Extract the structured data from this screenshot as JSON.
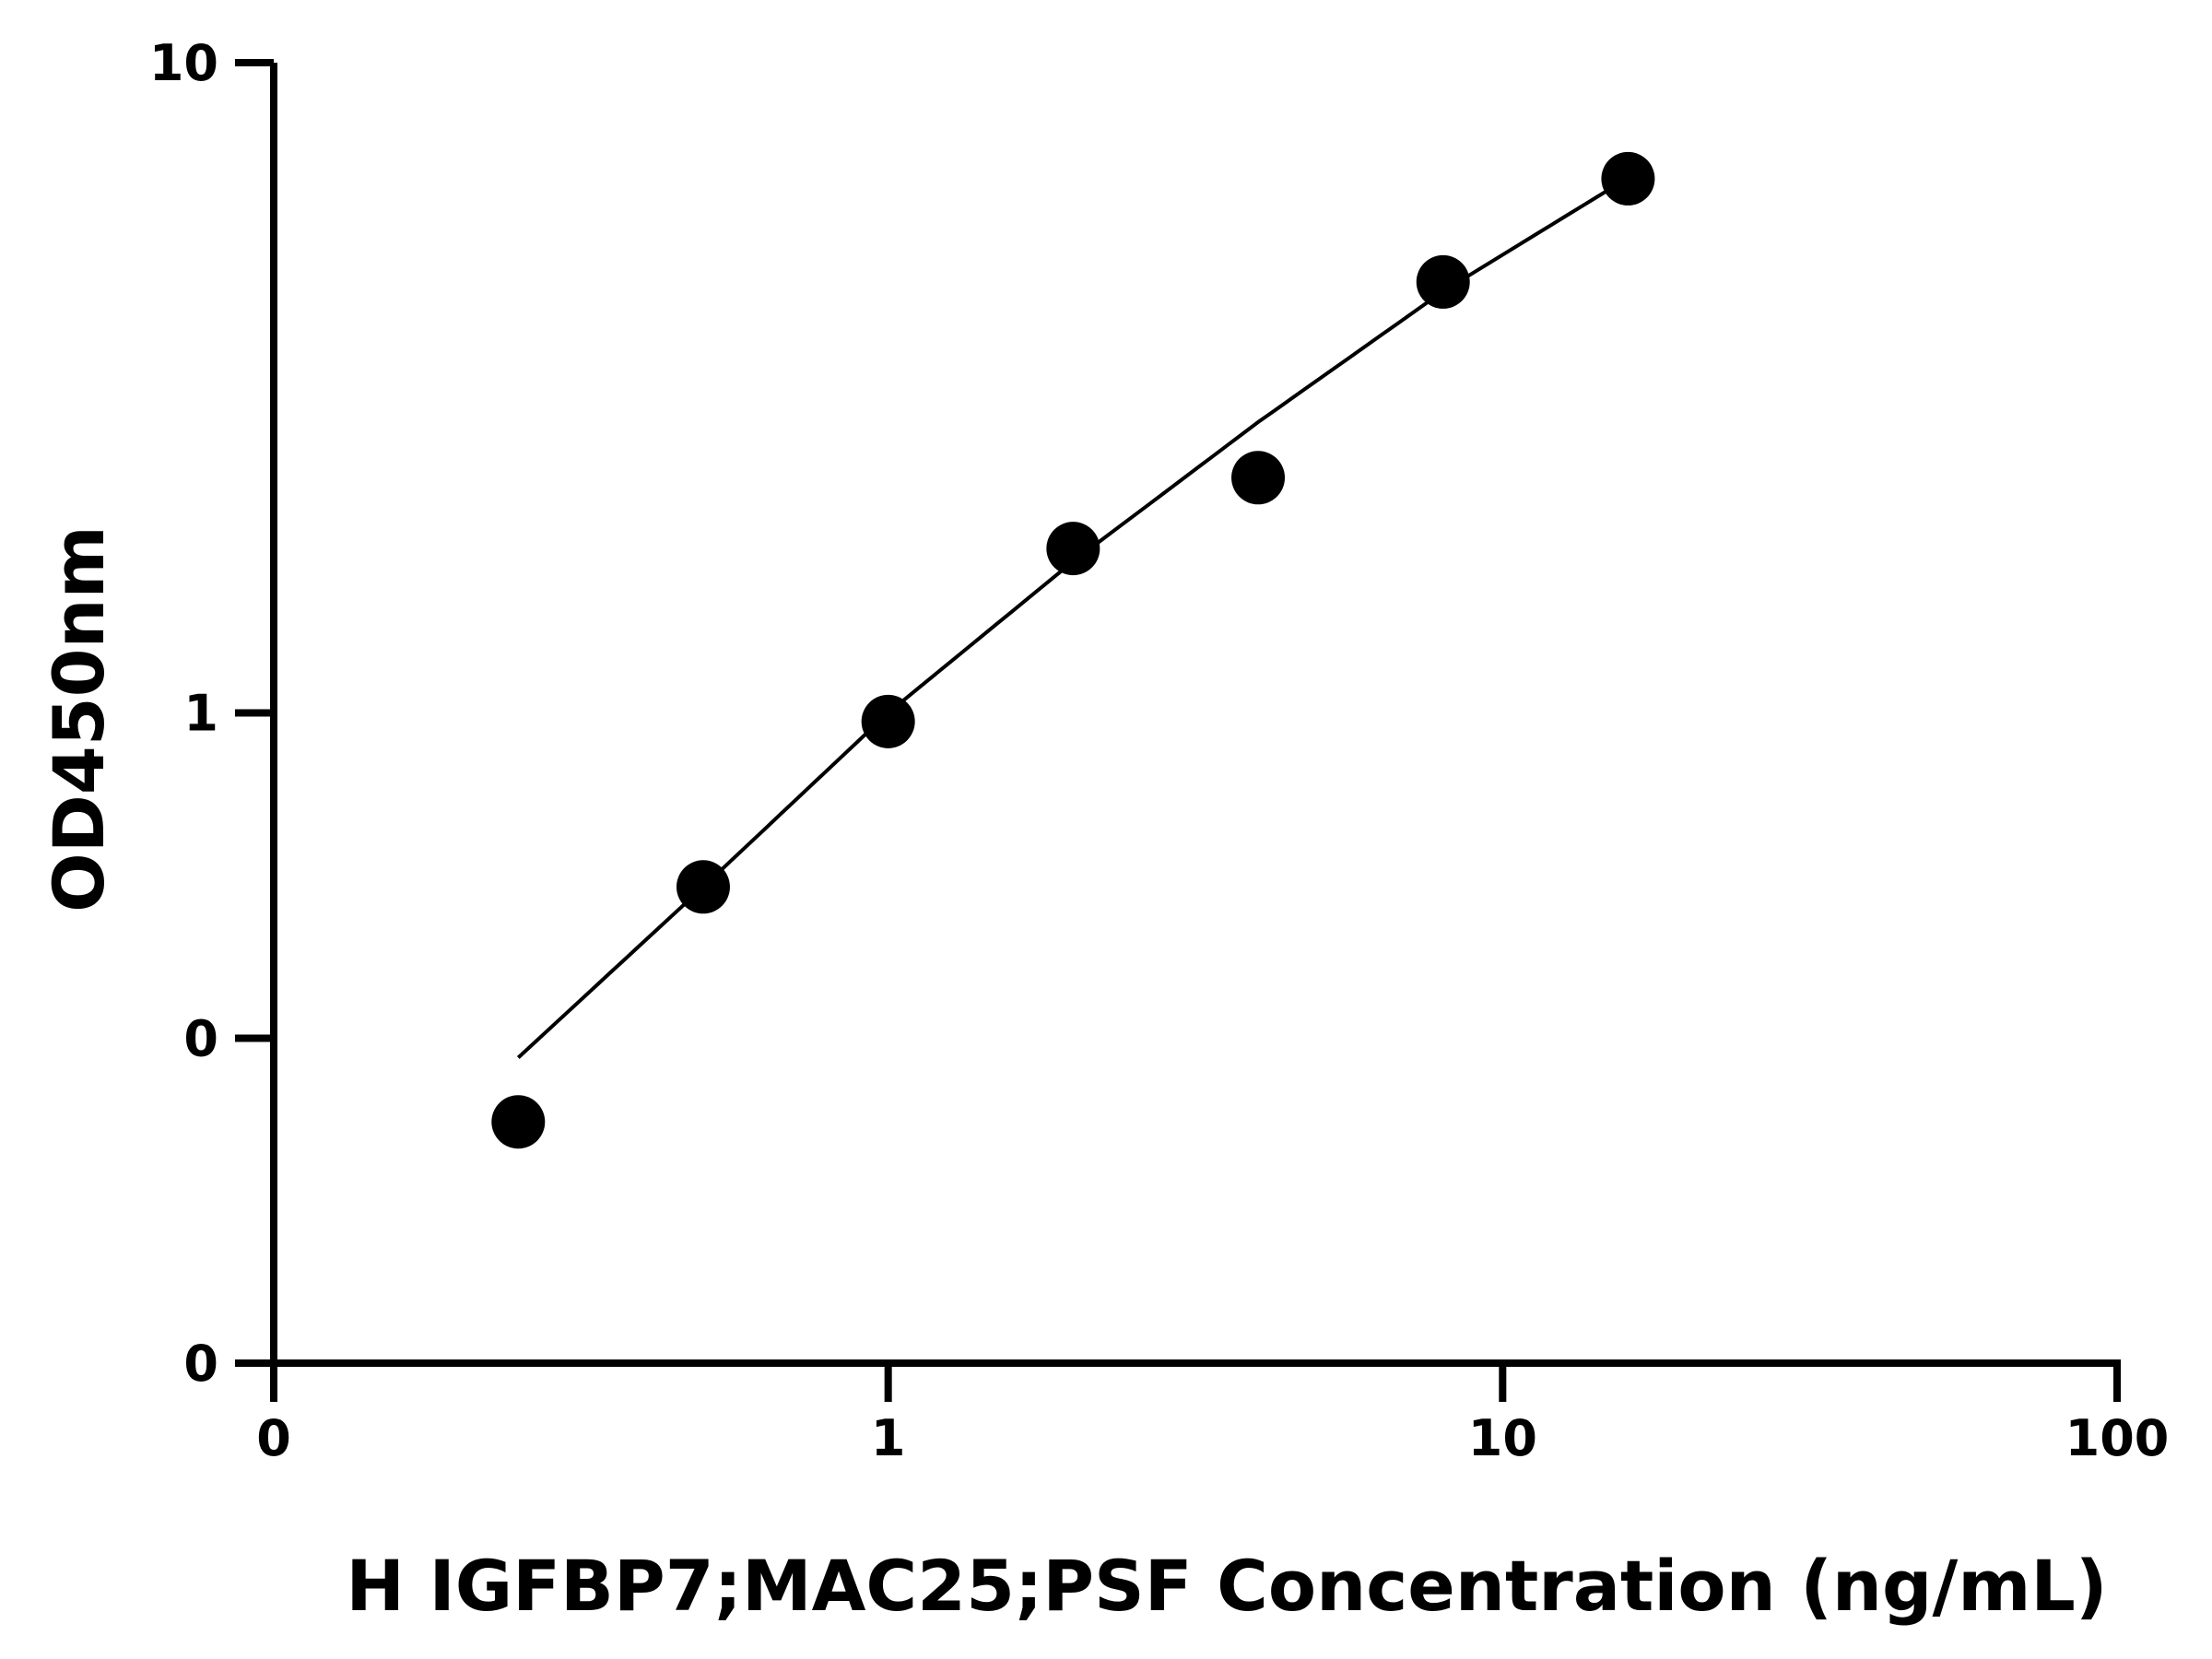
{
  "chart_data": {
    "type": "scatter",
    "title": "",
    "xlabel": "H IGFBP7;MAC25;PSF Concentration (ng/mL)",
    "ylabel": "OD450nm",
    "x_scale": "log",
    "y_scale": "log",
    "xlim": [
      0.1,
      100
    ],
    "ylim": [
      0.1,
      10
    ],
    "x_ticks": [
      {
        "value": 0.1,
        "label": "0"
      },
      {
        "value": 1,
        "label": "1"
      },
      {
        "value": 10,
        "label": "10"
      },
      {
        "value": 100,
        "label": "100"
      }
    ],
    "y_ticks": [
      {
        "value": 0.1,
        "label": "0"
      },
      {
        "value": 0.316,
        "label": "0"
      },
      {
        "value": 1,
        "label": "1"
      },
      {
        "value": 10,
        "label": "10"
      }
    ],
    "grid": false,
    "legend": "none",
    "series": [
      {
        "points": [
          {
            "x": 0.25,
            "y": 0.235
          },
          {
            "x": 0.5,
            "y": 0.54
          },
          {
            "x": 1.0,
            "y": 0.97
          },
          {
            "x": 2.0,
            "y": 1.79
          },
          {
            "x": 4.0,
            "y": 2.3
          },
          {
            "x": 8.0,
            "y": 4.6
          },
          {
            "x": 16.0,
            "y": 6.63
          }
        ]
      }
    ],
    "fit_curve": {
      "x_range": [
        0.25,
        16
      ],
      "points": [
        {
          "x": 0.25,
          "y": 0.295
        },
        {
          "x": 0.5,
          "y": 0.54
        },
        {
          "x": 1.0,
          "y": 1.0
        },
        {
          "x": 2.0,
          "y": 1.71
        },
        {
          "x": 4.0,
          "y": 2.8
        },
        {
          "x": 8.0,
          "y": 4.45
        },
        {
          "x": 16.0,
          "y": 6.65
        }
      ]
    },
    "colors": {
      "axis": "#000000",
      "points": "#000000",
      "curve": "#000000"
    }
  }
}
